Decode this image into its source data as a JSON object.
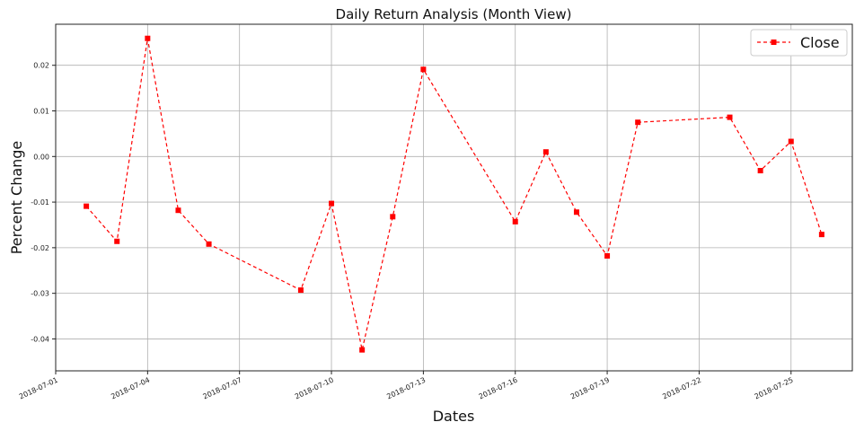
{
  "chart_data": {
    "type": "line",
    "title": "Daily Return Analysis (Month View)",
    "xlabel": "Dates",
    "ylabel": "Percent Change",
    "xlim": [
      "2018-07-01",
      "2018-07-27"
    ],
    "ylim": [
      -0.047,
      0.029
    ],
    "grid": true,
    "legend_position": "top-right",
    "x_ticks": [
      "2018-07-01",
      "2018-07-04",
      "2018-07-07",
      "2018-07-10",
      "2018-07-13",
      "2018-07-16",
      "2018-07-19",
      "2018-07-22",
      "2018-07-25"
    ],
    "y_ticks": [
      "0.02",
      "0.01",
      "0.00",
      "-0.01",
      "-0.02",
      "-0.03",
      "-0.04"
    ],
    "y_tick_values": [
      0.02,
      0.01,
      0.0,
      -0.01,
      -0.02,
      -0.03,
      -0.04
    ],
    "series": [
      {
        "name": "Close",
        "color": "#ff0000",
        "line_style": "dashed",
        "marker": "square",
        "x": [
          "2018-07-02",
          "2018-07-03",
          "2018-07-04",
          "2018-07-05",
          "2018-07-06",
          "2018-07-09",
          "2018-07-10",
          "2018-07-11",
          "2018-07-12",
          "2018-07-13",
          "2018-07-16",
          "2018-07-17",
          "2018-07-18",
          "2018-07-19",
          "2018-07-20",
          "2018-07-23",
          "2018-07-24",
          "2018-07-25",
          "2018-07-26"
        ],
        "values": [
          -0.0109,
          -0.0186,
          0.0259,
          -0.0118,
          -0.0192,
          -0.0293,
          -0.0103,
          -0.0424,
          -0.0132,
          0.0191,
          -0.0143,
          0.001,
          -0.0122,
          -0.0218,
          0.0075,
          0.0086,
          -0.0031,
          0.0033,
          -0.0171
        ]
      }
    ]
  }
}
